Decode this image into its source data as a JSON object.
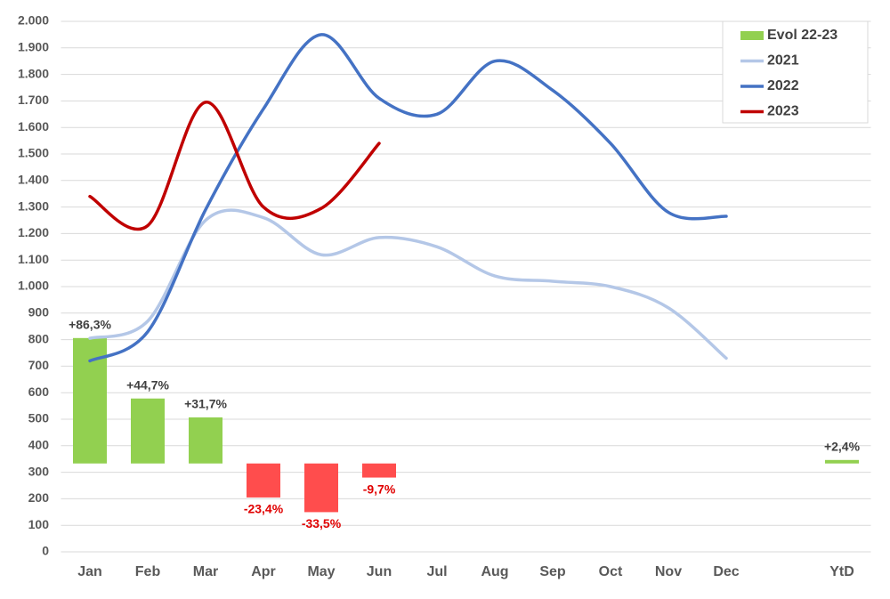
{
  "chart_data": {
    "type": "combo",
    "categories": [
      "Jan",
      "Feb",
      "Mar",
      "Apr",
      "May",
      "Jun",
      "Jul",
      "Aug",
      "Sep",
      "Oct",
      "Nov",
      "Dec",
      null,
      "YtD"
    ],
    "ylim": [
      0,
      2000
    ],
    "yticks": [
      0,
      100,
      200,
      300,
      400,
      500,
      600,
      700,
      800,
      900,
      {
        "value": 1000,
        "label": "1.000"
      },
      {
        "value": 1100,
        "label": "1.100"
      },
      {
        "value": 1200,
        "label": "1.200"
      },
      {
        "value": 1300,
        "label": "1.300"
      },
      {
        "value": 1400,
        "label": "1.400"
      },
      {
        "value": 1500,
        "label": "1.500"
      },
      {
        "value": 1600,
        "label": "1.600"
      },
      {
        "value": 1700,
        "label": "1.700"
      },
      {
        "value": 1800,
        "label": "1.800"
      },
      {
        "value": 1900,
        "label": "1.900"
      },
      {
        "value": 2000,
        "label": "2.000"
      }
    ],
    "y2lim": [
      -60.8,
      304.2
    ],
    "grid": true,
    "legend": "top-right",
    "series": [
      {
        "name": "Evol 22-23",
        "type": "bar",
        "axis": "y2",
        "color": "#92d050",
        "negative_color": "#ff4d4d",
        "values": [
          86.3,
          44.7,
          31.7,
          -23.4,
          -33.5,
          -9.7,
          null,
          null,
          null,
          null,
          null,
          null,
          null,
          2.4
        ],
        "value_labels": [
          "+86,3%",
          "+44,7%",
          "+31,7%",
          "-23,4%",
          "-33,5%",
          "-9,7%",
          null,
          null,
          null,
          null,
          null,
          null,
          null,
          "+2,4%"
        ]
      },
      {
        "name": "2021",
        "type": "line",
        "color": "#b4c7e7",
        "values": [
          805,
          870,
          1250,
          1260,
          1120,
          1185,
          1150,
          1040,
          1020,
          1000,
          920,
          730,
          null,
          null
        ]
      },
      {
        "name": "2022",
        "type": "line",
        "color": "#4472c4",
        "values": [
          720,
          830,
          1290,
          1670,
          1950,
          1710,
          1650,
          1850,
          1740,
          1540,
          1280,
          1265,
          null,
          null
        ]
      },
      {
        "name": "2023",
        "type": "line",
        "color": "#c00000",
        "values": [
          1340,
          1230,
          1695,
          1300,
          1295,
          1540,
          null,
          null,
          null,
          null,
          null,
          null,
          null,
          null
        ]
      }
    ]
  }
}
